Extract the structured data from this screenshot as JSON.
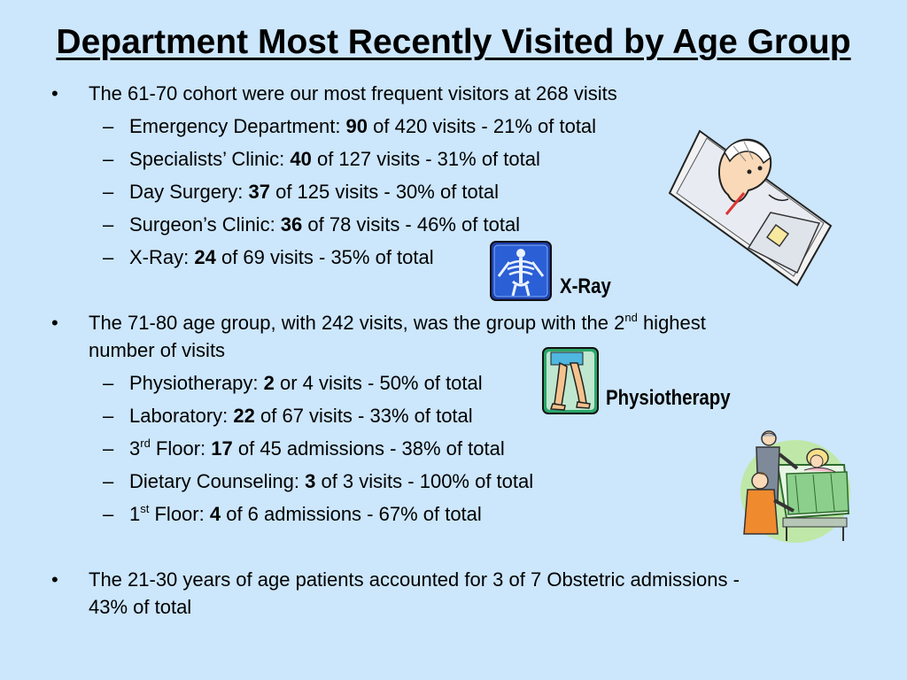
{
  "title": "Department Most Recently Visited by Age Group",
  "bullets": [
    {
      "prefix": "The 61-70 cohort were our most frequent visitors at 268 visits",
      "items": [
        {
          "label": "Emergency Department: ",
          "num": "90",
          "rest": " of 420 visits - 21% of total"
        },
        {
          "label": "Specialists’ Clinic: ",
          "num": "40",
          "rest": " of 127 visits - 31% of total"
        },
        {
          "label": "Day Surgery: ",
          "num": "37",
          "rest": " of 125 visits - 30% of total"
        },
        {
          "label": "Surgeon’s Clinic: ",
          "num": "36",
          "rest": " of 78 visits - 46% of total"
        },
        {
          "label": "X-Ray: ",
          "num": "24",
          "rest": " of 69 visits - 35% of total"
        }
      ]
    },
    {
      "line1_pre": "The 71-80 age group, with 242 visits, was the group with the 2",
      "line1_sup": "nd",
      "line1_post": " highest",
      "line2": "number of visits",
      "items": [
        {
          "label": "Physiotherapy: ",
          "num": "2",
          "rest": " or 4 visits - 50% of total"
        },
        {
          "label": "Laboratory: ",
          "num": "22",
          "rest": " of 67 visits - 33% of total"
        },
        {
          "pre": "3",
          "sup": "rd",
          "label": " Floor: ",
          "num": "17",
          "rest": " of 45 admissions - 38% of total"
        },
        {
          "label": "Dietary Counseling: ",
          "num": "3",
          "rest": " of 3 visits - 100% of total"
        },
        {
          "pre": "1",
          "sup": "st",
          "label": " Floor: ",
          "num": "4",
          "rest": " of 6 admissions - 67% of total"
        }
      ]
    },
    {
      "line1": "The 21-30 years of age patients accounted for 3 of 7 Obstetric admissions -",
      "line2": "43% of total"
    }
  ],
  "bullet_char": "•",
  "dash_char": "–",
  "captions": {
    "xray": "X-Ray",
    "physio": "Physiotherapy"
  },
  "clipart": [
    "sick-patient-clipart",
    "xray-skeleton-icon",
    "physiotherapy-legs-icon",
    "hospital-bed-clipart"
  ]
}
